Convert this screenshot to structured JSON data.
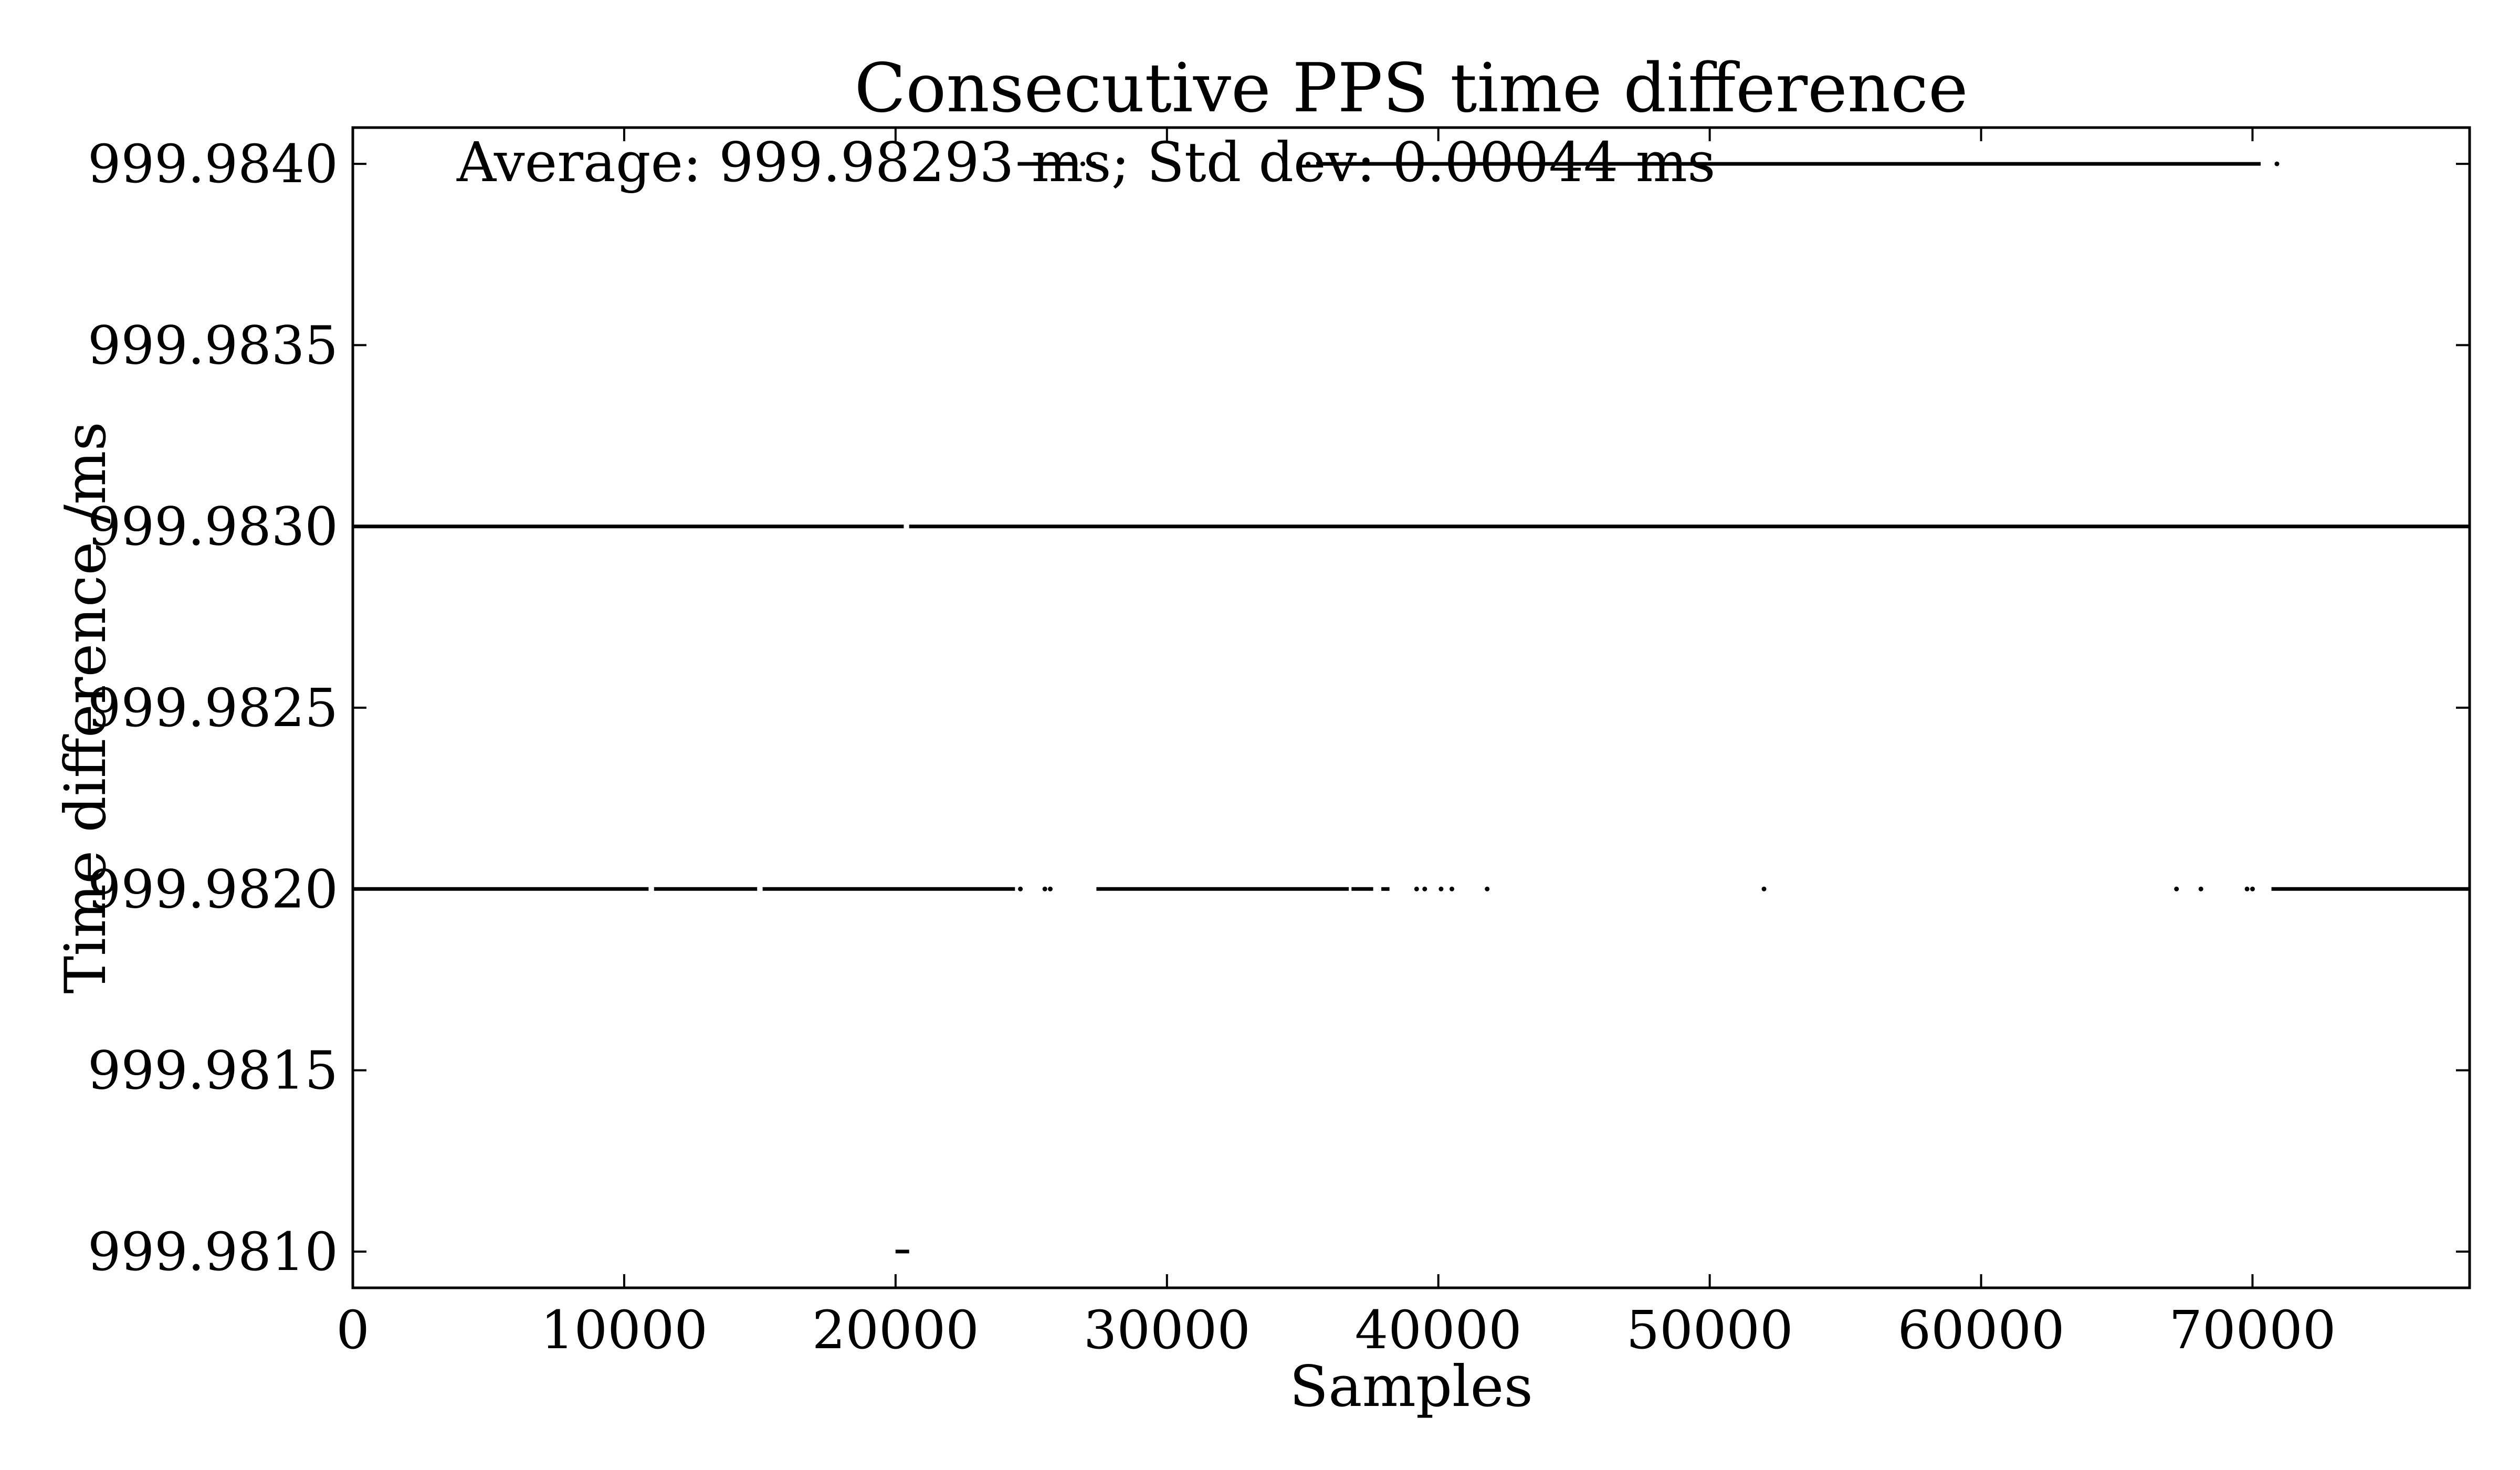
{
  "chart_data": {
    "type": "scatter",
    "title": "Consecutive PPS time difference",
    "xlabel": "Samples",
    "ylabel": "Time difference /ms",
    "annotation": "Average: 999.98293 ms; Std dev: 0.00044 ms",
    "xlim": [
      0,
      78000
    ],
    "ylim": [
      999.9809,
      999.9841
    ],
    "x_ticks": [
      {
        "value": 0,
        "label": "0"
      },
      {
        "value": 10000,
        "label": "10000"
      },
      {
        "value": 20000,
        "label": "20000"
      },
      {
        "value": 30000,
        "label": "30000"
      },
      {
        "value": 40000,
        "label": "40000"
      },
      {
        "value": 50000,
        "label": "50000"
      },
      {
        "value": 60000,
        "label": "60000"
      },
      {
        "value": 70000,
        "label": "70000"
      }
    ],
    "y_ticks": [
      {
        "value": 999.981,
        "label": "999.9810"
      },
      {
        "value": 999.9815,
        "label": "999.9815"
      },
      {
        "value": 999.982,
        "label": "999.9820"
      },
      {
        "value": 999.9825,
        "label": "999.9825"
      },
      {
        "value": 999.983,
        "label": "999.9830"
      },
      {
        "value": 999.9835,
        "label": "999.9835"
      },
      {
        "value": 999.984,
        "label": "999.9840"
      }
    ],
    "grid": false,
    "marker_color": "#000000",
    "levels": [
      {
        "y": 999.984,
        "segments": [
          [
            24500,
            26700
          ],
          [
            35500,
            70300
          ]
        ],
        "points": [
          26900,
          27300,
          35200,
          70900
        ]
      },
      {
        "y": 999.983,
        "segments": [
          [
            0,
            20300
          ],
          [
            20500,
            78000
          ]
        ],
        "points": []
      },
      {
        "y": 999.982,
        "segments": [
          [
            0,
            10900
          ],
          [
            11100,
            14900
          ],
          [
            15100,
            24400
          ],
          [
            27400,
            36700
          ],
          [
            36800,
            37600
          ],
          [
            37900,
            38200
          ],
          [
            70700,
            78000
          ]
        ],
        "points": [
          24600,
          25500,
          25700,
          39200,
          39500,
          40100,
          40500,
          41800,
          52000,
          67200,
          68100,
          69800,
          70000
        ]
      },
      {
        "y": 999.981,
        "segments": [
          [
            20000,
            20500
          ]
        ],
        "points": []
      }
    ]
  }
}
